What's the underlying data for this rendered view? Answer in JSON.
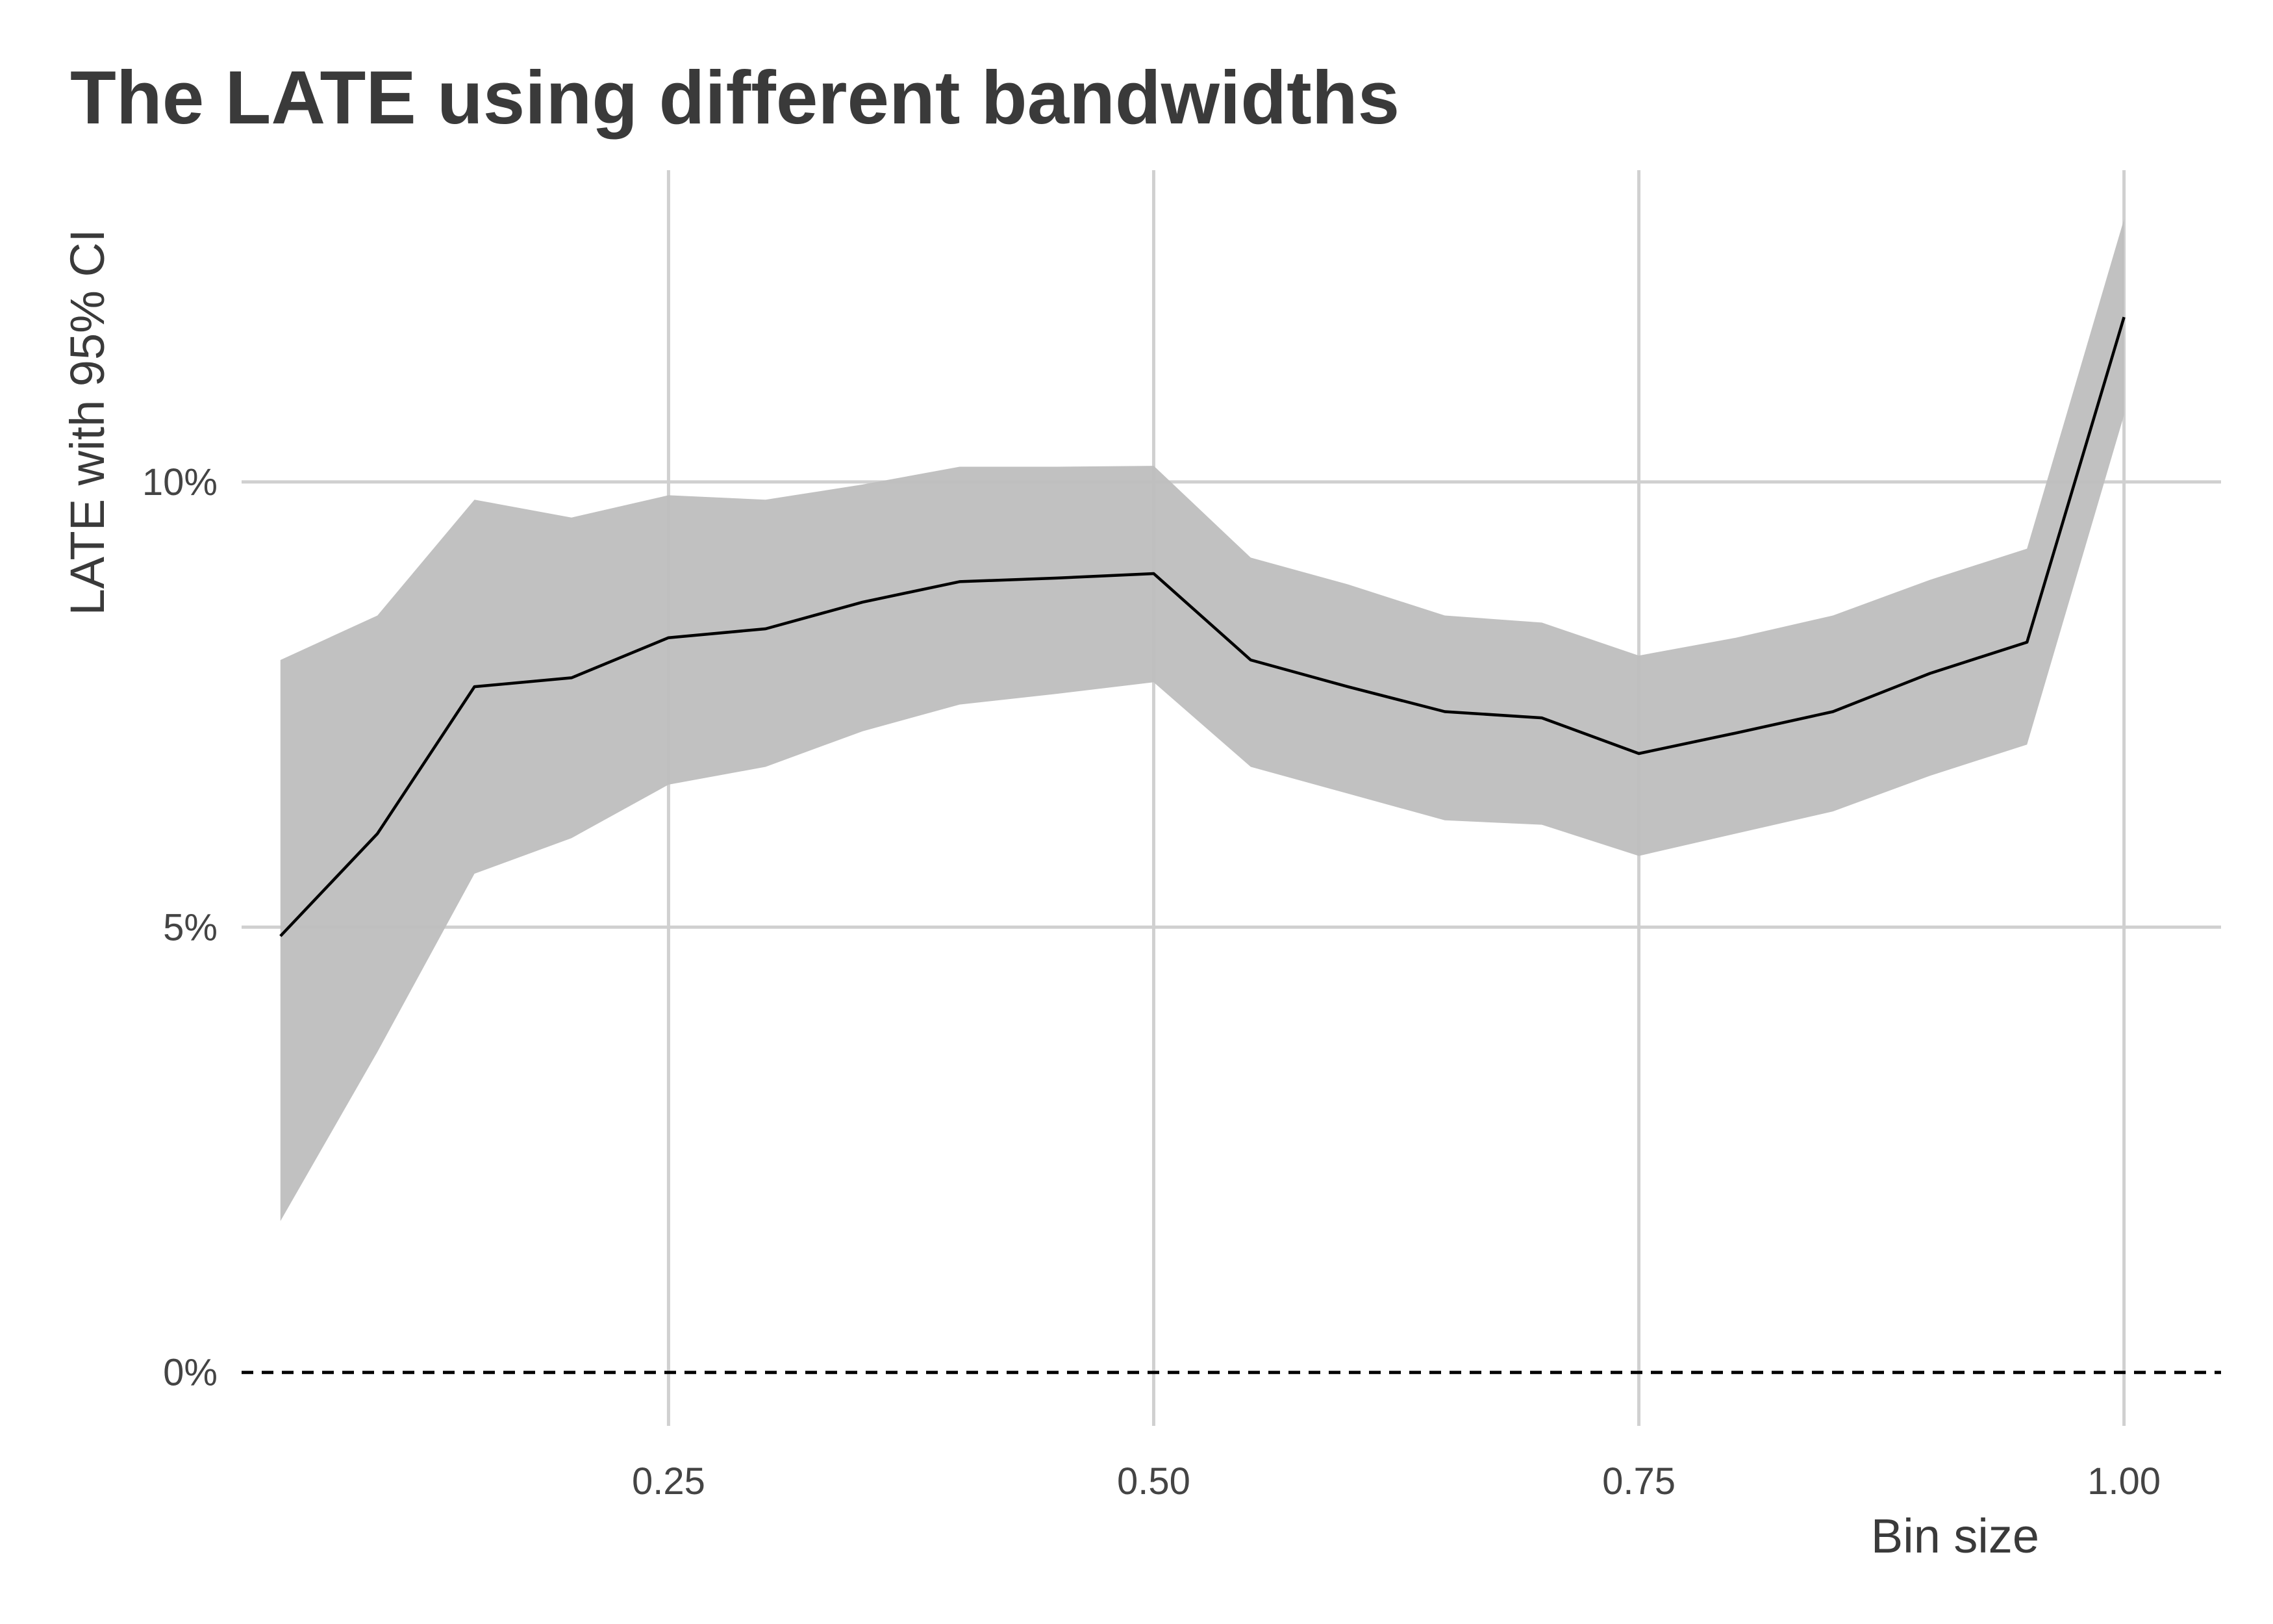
{
  "chart_data": {
    "type": "line",
    "title": "The LATE using different bandwidths",
    "xlabel": "Bin size",
    "ylabel": "LATE with 95% CI",
    "xlim": [
      0.03,
      1.05
    ],
    "ylim": [
      -0.6,
      13.5
    ],
    "x_ticks": [
      0.25,
      0.5,
      0.75,
      1.0
    ],
    "x_tick_labels": [
      "0.25",
      "0.50",
      "0.75",
      "1.00"
    ],
    "y_ticks": [
      0,
      5,
      10
    ],
    "y_tick_labels": [
      "0%",
      "5%",
      "10%"
    ],
    "grid": true,
    "reference_line": {
      "y": 0,
      "style": "dashed"
    },
    "colors": {
      "line": "#000000",
      "ribbon": "#bebebe",
      "grid": "#d0d0d0",
      "title": "#3a3a3a"
    },
    "series": [
      {
        "x": [
          0.05,
          0.1,
          0.15,
          0.2,
          0.25,
          0.3,
          0.35,
          0.4,
          0.45,
          0.5,
          0.55,
          0.6,
          0.65,
          0.7,
          0.75,
          0.8,
          0.85,
          0.9,
          0.95,
          1.0
        ],
        "y": [
          4.9,
          6.05,
          7.7,
          7.8,
          8.25,
          8.35,
          8.65,
          8.88,
          8.92,
          8.97,
          8.0,
          7.7,
          7.42,
          7.35,
          6.95,
          7.18,
          7.42,
          7.85,
          8.2,
          11.85
        ],
        "lower": [
          1.7,
          3.6,
          5.6,
          6.0,
          6.6,
          6.8,
          7.2,
          7.5,
          7.62,
          7.75,
          6.8,
          6.5,
          6.2,
          6.15,
          5.8,
          6.05,
          6.3,
          6.7,
          7.05,
          10.75
        ],
        "upper": [
          8.0,
          8.5,
          9.8,
          9.6,
          9.85,
          9.8,
          9.97,
          10.17,
          10.17,
          10.18,
          9.15,
          8.85,
          8.5,
          8.42,
          8.05,
          8.25,
          8.5,
          8.9,
          9.25,
          12.95
        ]
      }
    ]
  }
}
